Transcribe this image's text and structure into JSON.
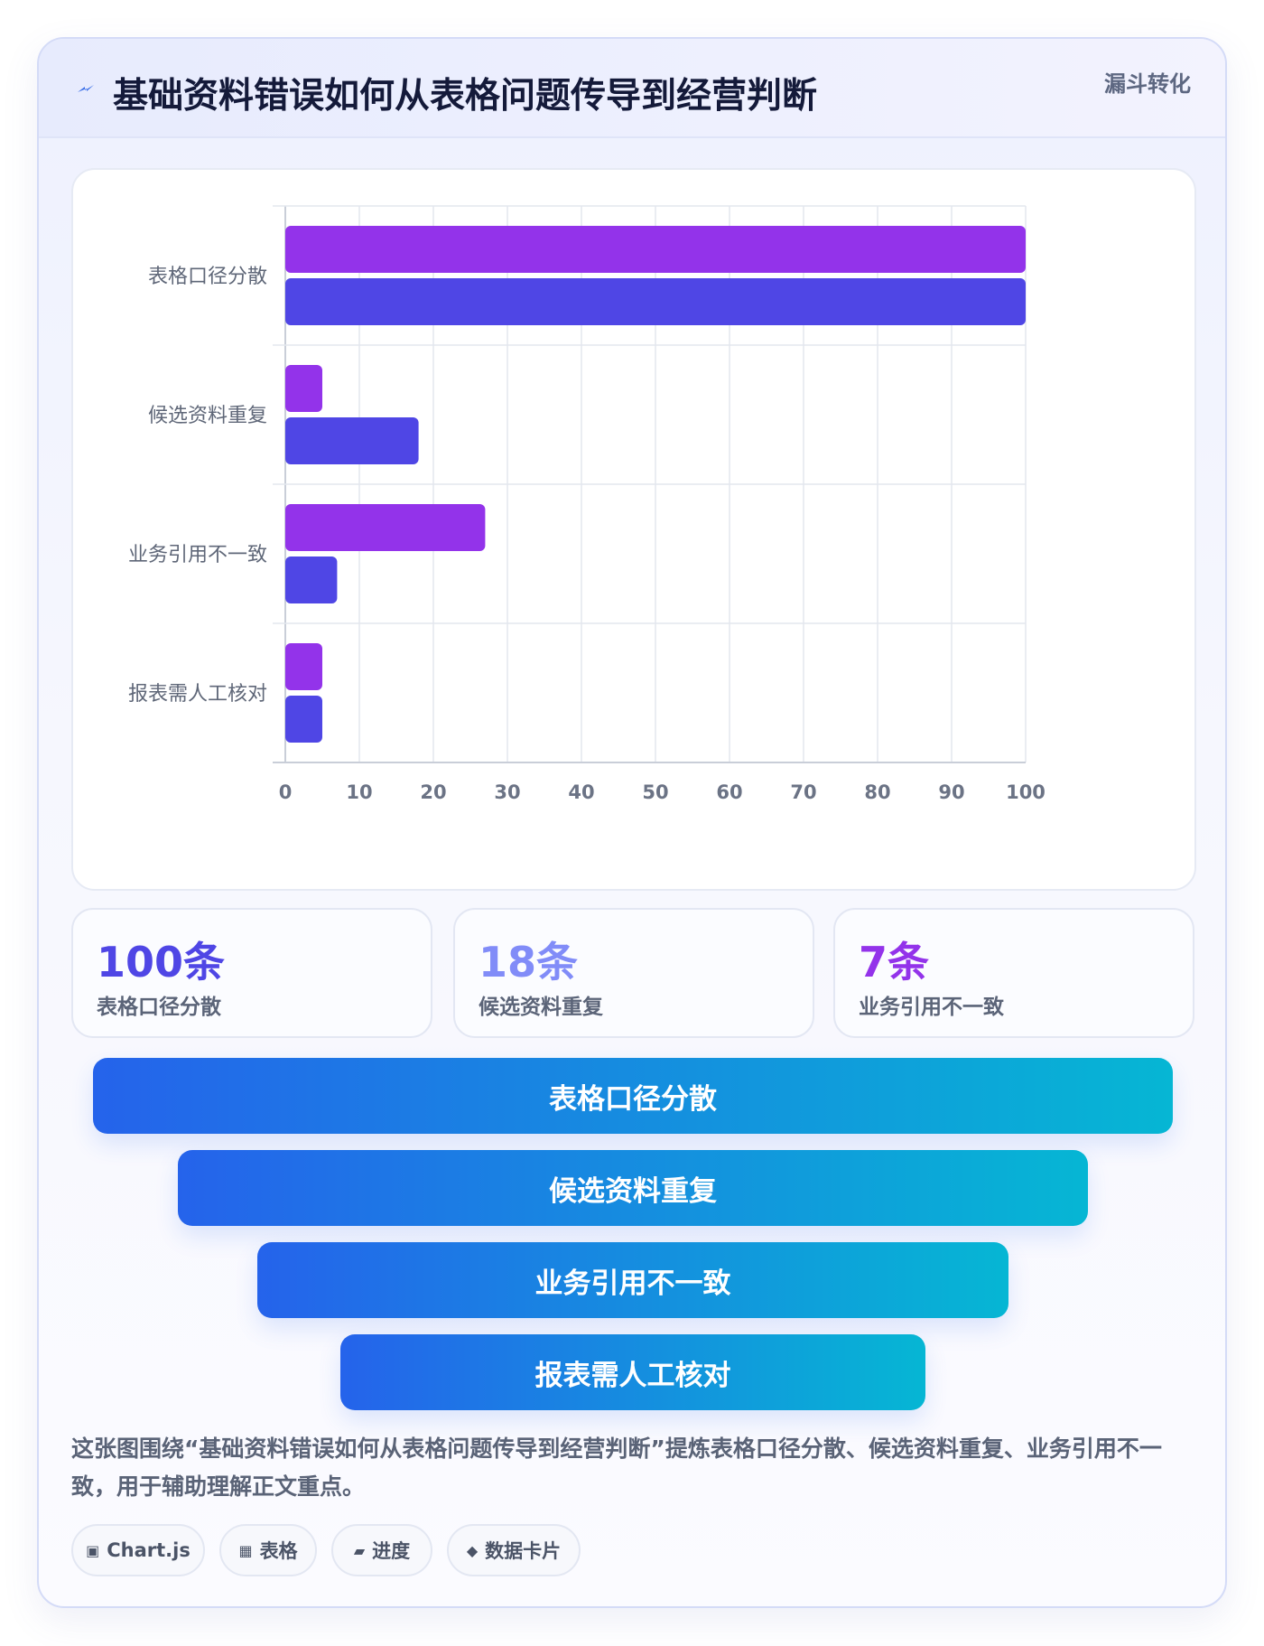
{
  "header": {
    "icon": "lightning-icon",
    "title": "基础资料错误如何从表格问题传导到经营判断",
    "badge": "漏斗转化"
  },
  "chart_data": {
    "type": "bar",
    "orientation": "horizontal",
    "categories": [
      "表格口径分散",
      "候选资料重复",
      "业务引用不一致",
      "报表需人工核对"
    ],
    "series": [
      {
        "color": "#9333ea",
        "values": [
          100,
          5,
          27,
          5
        ]
      },
      {
        "color": "#4f46e5",
        "values": [
          100,
          18,
          7,
          5
        ]
      }
    ],
    "xlim": [
      0,
      100
    ],
    "xticks": [
      "0",
      "10",
      "20",
      "30",
      "40",
      "50",
      "60",
      "70",
      "80",
      "90",
      "100"
    ],
    "grid": true,
    "legend": "none"
  },
  "stats": [
    {
      "value": "100条",
      "label": "表格口径分散",
      "color": "#4f46e5"
    },
    {
      "value": "18条",
      "label": "候选资料重复",
      "color": "#818cf8"
    },
    {
      "value": "7条",
      "label": "业务引用不一致",
      "color": "#9333ea"
    }
  ],
  "funnel": [
    "表格口径分散",
    "候选资料重复",
    "业务引用不一致",
    "报表需人工核对"
  ],
  "description": "这张图围绕“基础资料错误如何从表格问题传导到经营判断”提炼表格口径分散、候选资料重复、业务引用不一致，用于辅助理解正文重点。",
  "tags": [
    {
      "icon": "▣",
      "icon_name": "chart-square-icon",
      "label": "Chart.js"
    },
    {
      "icon": "▦",
      "icon_name": "table-grid-icon",
      "label": "表格"
    },
    {
      "icon": "▰",
      "icon_name": "progress-icon",
      "label": "进度"
    },
    {
      "icon": "◆",
      "icon_name": "diamond-icon",
      "label": "数据卡片"
    }
  ]
}
